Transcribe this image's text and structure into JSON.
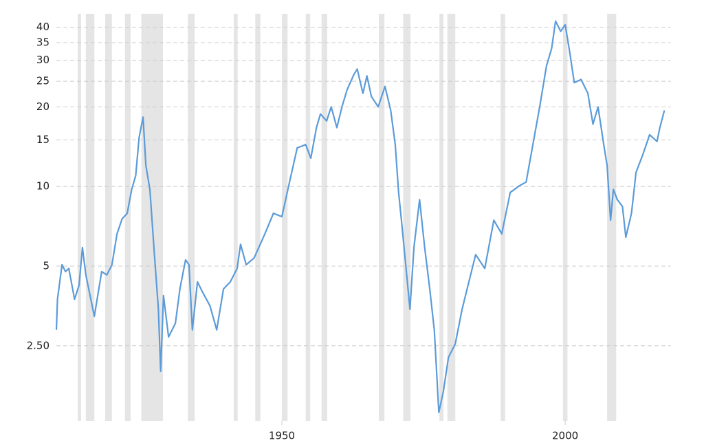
{
  "chart_data": {
    "type": "line",
    "color": "#5b9bd9",
    "log_scale": true,
    "grid": true,
    "xlim": [
      1910.2,
      2017.7
    ],
    "ylim": [
      1.3,
      45
    ],
    "xticks": [
      1950,
      2000
    ],
    "yticks": [
      {
        "value": 2.5,
        "label": "2.50"
      },
      5,
      10,
      15,
      20,
      25,
      30,
      35,
      40
    ],
    "shaded_ranges": [
      [
        1913.96,
        1914.56
      ],
      [
        1915.4,
        1916.9
      ],
      [
        1918.8,
        1920.0
      ],
      [
        1922.3,
        1923.3
      ],
      [
        1925.2,
        1929.0
      ],
      [
        1933.4,
        1934.6
      ],
      [
        1941.5,
        1942.2
      ],
      [
        1945.3,
        1946.2
      ],
      [
        1950.0,
        1951.0
      ],
      [
        1954.2,
        1955.0
      ],
      [
        1957.0,
        1958.0
      ],
      [
        1967.1,
        1968.1
      ],
      [
        1971.4,
        1972.7
      ],
      [
        1977.8,
        1978.5
      ],
      [
        1979.2,
        1980.6
      ],
      [
        1988.6,
        1989.4
      ],
      [
        1999.6,
        2000.4
      ],
      [
        2007.4,
        2009.0
      ]
    ],
    "x": [
      1910.2,
      1910.4,
      1911.2,
      1911.8,
      1912.4,
      1913.4,
      1914.2,
      1914.8,
      1915.4,
      1916.9,
      1918.2,
      1919.1,
      1920.0,
      1920.9,
      1921.8,
      1922.7,
      1923.5,
      1924.2,
      1924.8,
      1925.5,
      1926.0,
      1926.7,
      1927.5,
      1928.2,
      1928.6,
      1929.1,
      1930.0,
      1931.2,
      1932.0,
      1933.0,
      1933.6,
      1934.2,
      1935.1,
      1936.0,
      1937.3,
      1938.5,
      1939.7,
      1940.9,
      1942.1,
      1942.7,
      1943.7,
      1945.1,
      1947.0,
      1948.5,
      1950.0,
      1951.2,
      1952.7,
      1954.2,
      1955.1,
      1956.1,
      1956.8,
      1957.9,
      1958.7,
      1959.7,
      1960.6,
      1961.5,
      1962.7,
      1963.3,
      1964.3,
      1965.0,
      1965.8,
      1967.0,
      1968.2,
      1969.2,
      1970.0,
      1970.6,
      1971.1,
      1971.8,
      1972.6,
      1973.3,
      1974.3,
      1975.2,
      1976.1,
      1976.9,
      1977.7,
      1978.5,
      1979.4,
      1980.6,
      1981.8,
      1983.0,
      1984.2,
      1985.8,
      1987.4,
      1988.8,
      1990.3,
      1991.9,
      1993.1,
      1994.3,
      1995.5,
      1996.7,
      1997.6,
      1998.3,
      1999.2,
      2000.0,
      2000.7,
      2001.6,
      2002.8,
      2004.0,
      2004.9,
      2005.8,
      2006.8,
      2007.4,
      2008.0,
      2008.5,
      2009.2,
      2010.1,
      2010.7,
      2011.7,
      2012.5,
      2013.7,
      2014.9,
      2016.2,
      2016.7,
      2017.5
    ],
    "values": [
      2.87,
      3.75,
      5.06,
      4.77,
      4.9,
      3.75,
      4.23,
      5.88,
      4.63,
      3.23,
      4.77,
      4.63,
      5.06,
      6.62,
      7.55,
      7.92,
      9.76,
      11.0,
      15.3,
      18.3,
      12.0,
      9.76,
      5.53,
      3.43,
      2.0,
      3.87,
      2.7,
      3.04,
      4.1,
      5.28,
      5.06,
      2.87,
      4.36,
      3.99,
      3.54,
      2.87,
      4.1,
      4.36,
      4.9,
      6.05,
      5.06,
      5.37,
      6.62,
      7.92,
      7.69,
      10.06,
      14.0,
      14.4,
      12.8,
      16.7,
      18.8,
      17.7,
      20.0,
      16.7,
      20.0,
      23.2,
      26.5,
      27.8,
      22.5,
      26.2,
      21.9,
      20.0,
      23.9,
      19.4,
      14.4,
      9.5,
      7.46,
      5.2,
      3.43,
      5.88,
      8.92,
      5.88,
      4.1,
      2.87,
      1.4,
      1.68,
      2.26,
      2.54,
      3.43,
      4.36,
      5.53,
      4.9,
      7.46,
      6.62,
      9.5,
      10.06,
      10.4,
      14.4,
      20.0,
      28.6,
      33.2,
      42.2,
      38.6,
      40.9,
      33.2,
      24.7,
      25.4,
      22.5,
      17.2,
      20.0,
      14.4,
      12.0,
      7.46,
      9.76,
      8.92,
      8.4,
      6.43,
      7.92,
      11.3,
      13.2,
      15.7,
      14.8,
      16.7,
      19.4
    ]
  }
}
